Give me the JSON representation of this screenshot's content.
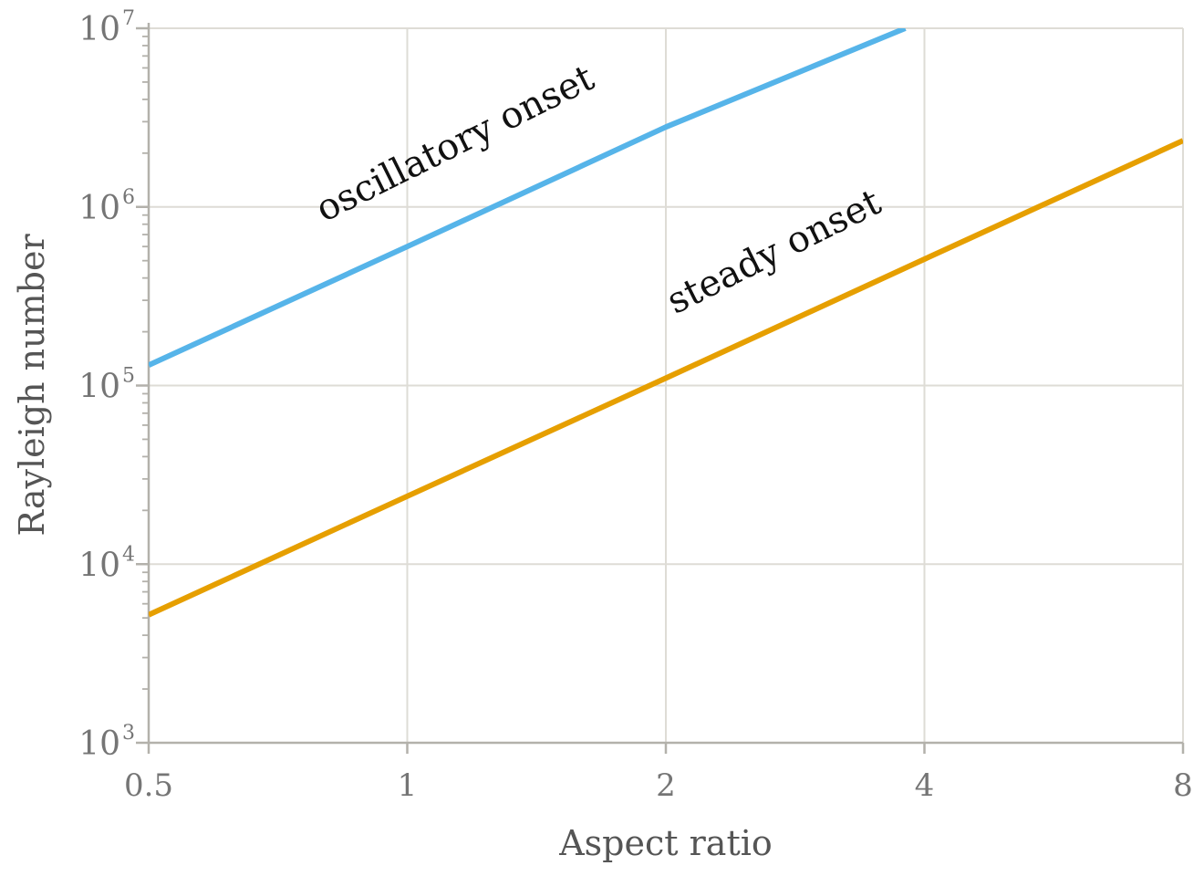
{
  "chart_data": {
    "type": "line",
    "xlabel": "Aspect ratio",
    "ylabel": "Rayleigh number",
    "x_scale": "log2",
    "y_scale": "log10",
    "xlim": [
      0.5,
      8
    ],
    "ylim": [
      1000,
      10000000
    ],
    "x_ticks": [
      {
        "value": 0.5,
        "label": "0.5"
      },
      {
        "value": 1,
        "label": "1"
      },
      {
        "value": 2,
        "label": "2"
      },
      {
        "value": 4,
        "label": "4"
      },
      {
        "value": 8,
        "label": "8"
      }
    ],
    "y_ticks": [
      {
        "value": 1000,
        "base": "10",
        "exp": "3"
      },
      {
        "value": 10000,
        "base": "10",
        "exp": "4"
      },
      {
        "value": 100000,
        "base": "10",
        "exp": "5"
      },
      {
        "value": 1000000,
        "base": "10",
        "exp": "6"
      },
      {
        "value": 10000000,
        "base": "10",
        "exp": "7"
      }
    ],
    "grid": true,
    "legend": "none",
    "series": [
      {
        "label": "oscillatory onset",
        "color": "#56b4e9",
        "x": [
          0.5,
          1,
          2,
          3.8
        ],
        "y": [
          130000,
          600000,
          2800000,
          10000000
        ]
      },
      {
        "label": "steady onset",
        "color": "#e69f00",
        "x": [
          0.5,
          1,
          2,
          4,
          8
        ],
        "y": [
          5200,
          24000,
          110000,
          510000,
          2350000
        ]
      }
    ],
    "annotations": [
      {
        "text": "oscillatory onset",
        "x": 0.8,
        "y": 820000,
        "angle": -26.5
      },
      {
        "text": "steady onset",
        "x": 2.05,
        "y": 250000,
        "angle": -26.5
      }
    ]
  }
}
